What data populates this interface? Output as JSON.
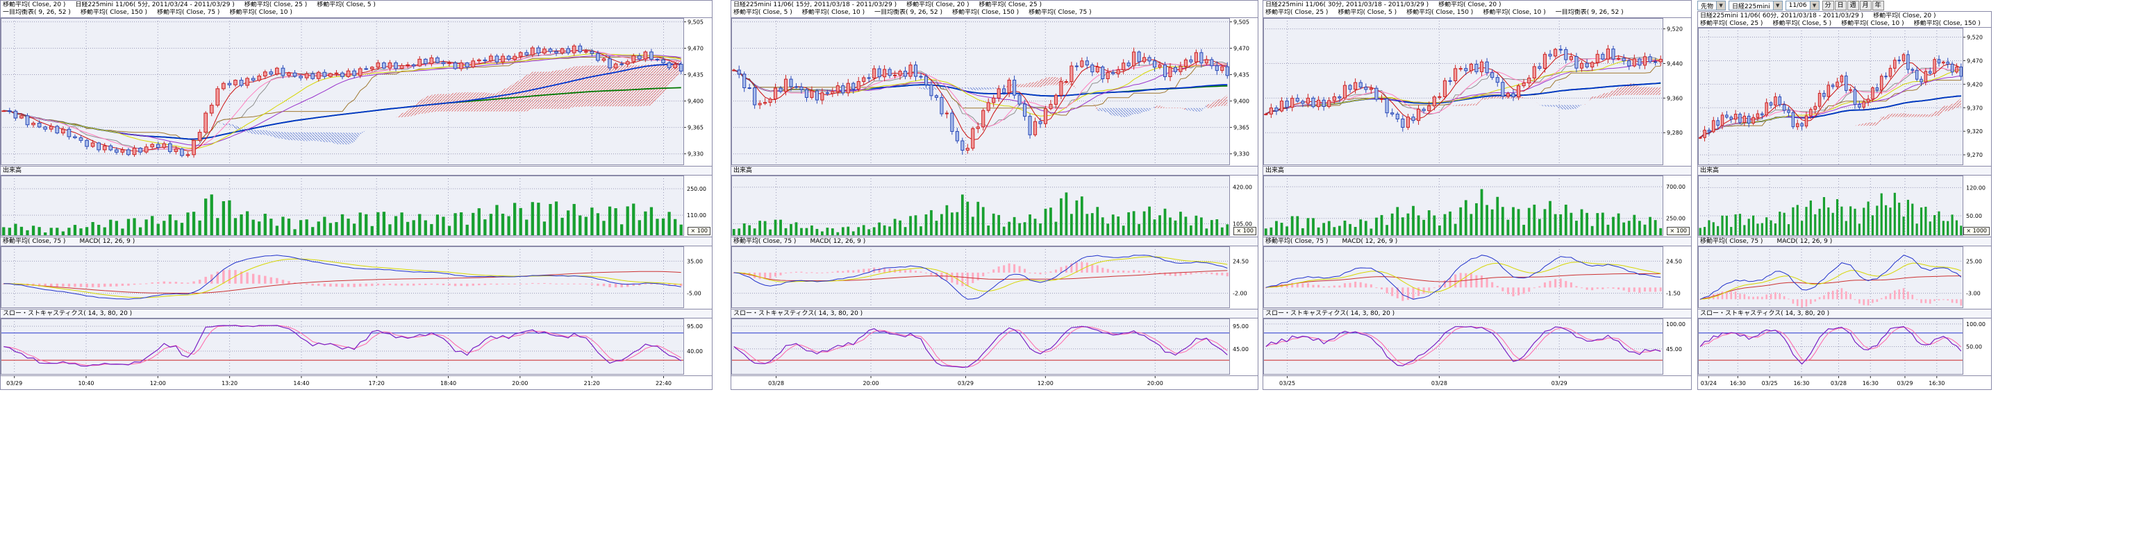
{
  "toolbar": {
    "instrument_type": "先物",
    "symbol": "日経225mini",
    "contract": "11/06",
    "dropdown_icon": "▼",
    "period_buttons": [
      "分",
      "日",
      "週",
      "月",
      "年"
    ]
  },
  "colors": {
    "plot_bg": "#eef0f7",
    "border": "#8a8aa8",
    "grid": "#9a9ab8",
    "candle_up": "#cc2222",
    "candle_up_fill": "#f29a9a",
    "candle_down": "#2a4ab8",
    "candle_down_fill": "#aabdeb",
    "ma5": "#cc1111",
    "ma10": "#ff7fbf",
    "ma20": "#d6d600",
    "ma25": "#9933cc",
    "ma75": "#0033cc",
    "ma150": "#007700",
    "tenkan": "#909090",
    "kijun": "#a07830",
    "cloud_up": "#e07878",
    "cloud_down": "#7890d8",
    "volume": "#18a030",
    "macd": "#2233cc",
    "macd_signal": "#d6d600",
    "macd_ma": "#cc3333",
    "macd_hist": "#ffaac0",
    "stoch_k": "#7a1fc4",
    "stoch_d": "#ff66aa",
    "band_high": "#2233cc",
    "band_low": "#cc2222"
  },
  "panels": [
    {
      "legend_row1": [
        "移動平均( Close, 20 )",
        "日経225mini 11/06( 5分, 2011/03/24 - 2011/03/29 )",
        "移動平均( Close, 25 )",
        "移動平均( Close, 5 )"
      ],
      "legend_row2": [
        "一目均衡表( 9, 26, 52 )",
        "移動平均( Close, 150 )",
        "移動平均( Close, 75 )",
        "移動平均( Close, 10 )"
      ],
      "volume_label": "出来高",
      "volume_unit": "× 100",
      "macd_legend": [
        "移動平均( Close, 75 )",
        "MACD( 12, 26, 9 )"
      ],
      "stoch_label": "スロー・ストキャスティクス( 14, 3, 80, 20 )"
    },
    {
      "legend_row1": [
        "日経225mini 11/06( 15分, 2011/03/18 - 2011/03/29 )",
        "移動平均( Close, 20 )",
        "移動平均( Close, 25 )"
      ],
      "legend_row2": [
        "移動平均( Close, 5 )",
        "移動平均( Close, 10 )",
        "一目均衡表( 9, 26, 52 )",
        "移動平均( Close, 150 )",
        "移動平均( Close, 75 )"
      ],
      "volume_label": "出来高",
      "volume_unit": "× 100",
      "macd_legend": [
        "移動平均( Close, 75 )",
        "MACD( 12, 26, 9 )"
      ],
      "stoch_label": "スロー・ストキャスティクス( 14, 3, 80, 20 )"
    },
    {
      "legend_row1": [
        "日経225mini 11/06( 30分, 2011/03/18 - 2011/03/29 )",
        "移動平均( Close, 20 )"
      ],
      "legend_row2": [
        "移動平均( Close, 25 )",
        "移動平均( Close, 5 )",
        "移動平均( Close, 150 )",
        "移動平均( Close, 10 )",
        "一目均衡表( 9, 26, 52 )"
      ],
      "volume_label": "出来高",
      "volume_unit": "× 100",
      "macd_legend": [
        "移動平均( Close, 75 )",
        "MACD( 12, 26, 9 )"
      ],
      "stoch_label": "スロー・ストキャスティクス( 14, 3, 80, 20 )"
    },
    {
      "legend_row1": [
        "日経225mini 11/06( 60分, 2011/03/18 - 2011/03/29 )",
        "移動平均( Close, 20 )"
      ],
      "legend_row2": [
        "移動平均( Close, 25 )",
        "移動平均( Close, 5 )",
        "移動平均( Close, 10 )",
        "移動平均( Close, 150 )",
        "移動平均( Close, 75 )"
      ],
      "volume_label": "出来高",
      "volume_unit": "× 1000",
      "macd_legend": [
        "移動平均( Close, 75 )",
        "MACD( 12, 26, 9 )"
      ],
      "stoch_label": "スロー・ストキャスティクス( 14, 3, 80, 20 )"
    }
  ],
  "chart_data": [
    {
      "type": "candlestick",
      "title": "日経225mini 11/06( 5分, 2011/03/24 - 2011/03/29 )",
      "interval": "5分",
      "date_range": "2011/03/24 - 2011/03/29",
      "n_candles": 115,
      "wiggle": 4,
      "price_range": [
        9315,
        9510
      ],
      "price_ticks": [
        {
          "v": 9505,
          "label": "9,505"
        },
        {
          "v": 9470,
          "label": "9,470"
        },
        {
          "v": 9435,
          "label": "9,435"
        },
        {
          "v": 9400,
          "label": "9,400"
        },
        {
          "v": 9365,
          "label": "9,365"
        },
        {
          "v": 9330,
          "label": "9,330"
        }
      ],
      "close_keyframes": [
        [
          0,
          9385
        ],
        [
          0.17,
          9330
        ],
        [
          0.22,
          9342
        ],
        [
          0.27,
          9328
        ],
        [
          0.32,
          9420
        ],
        [
          0.4,
          9438
        ],
        [
          0.47,
          9432
        ],
        [
          0.55,
          9445
        ],
        [
          0.63,
          9452
        ],
        [
          0.68,
          9448
        ],
        [
          0.76,
          9462
        ],
        [
          0.84,
          9470
        ],
        [
          0.9,
          9448
        ],
        [
          0.95,
          9460
        ],
        [
          1,
          9443
        ]
      ],
      "volume_keyframes": [
        [
          0,
          70
        ],
        [
          0.08,
          45
        ],
        [
          0.17,
          95
        ],
        [
          0.27,
          120
        ],
        [
          0.31,
          250
        ],
        [
          0.36,
          130
        ],
        [
          0.45,
          90
        ],
        [
          0.55,
          140
        ],
        [
          0.63,
          110
        ],
        [
          0.72,
          160
        ],
        [
          0.8,
          200
        ],
        [
          0.87,
          150
        ],
        [
          0.93,
          180
        ],
        [
          1,
          110
        ]
      ],
      "volume_max": 320,
      "volume_ticks": [
        {
          "v": 250,
          "label": "250.00"
        },
        {
          "v": 110,
          "label": "110.00"
        }
      ],
      "macd_ticks": [
        "35.00",
        "-5.00"
      ],
      "stoch_ticks": [
        {
          "v": 95,
          "label": "95.00"
        },
        {
          "v": 40,
          "label": "40.00"
        }
      ],
      "time_ticks": [
        {
          "pos": 0.02,
          "label": "03/29"
        },
        {
          "pos": 0.125,
          "label": "10:40"
        },
        {
          "pos": 0.23,
          "label": "12:00"
        },
        {
          "pos": 0.335,
          "label": "13:20"
        },
        {
          "pos": 0.44,
          "label": "14:40"
        },
        {
          "pos": 0.55,
          "label": "17:20"
        },
        {
          "pos": 0.655,
          "label": "18:40"
        },
        {
          "pos": 0.76,
          "label": "20:00"
        },
        {
          "pos": 0.865,
          "label": "21:20"
        },
        {
          "pos": 0.97,
          "label": "22:40"
        }
      ]
    },
    {
      "type": "candlestick",
      "title": "日経225mini 11/06( 15分, 2011/03/18 - 2011/03/29 )",
      "interval": "15分",
      "date_range": "2011/03/18 - 2011/03/29",
      "n_candles": 96,
      "wiggle": 6,
      "price_range": [
        9315,
        9510
      ],
      "price_ticks": [
        {
          "v": 9505,
          "label": "9,505"
        },
        {
          "v": 9470,
          "label": "9,470"
        },
        {
          "v": 9435,
          "label": "9,435"
        },
        {
          "v": 9400,
          "label": "9,400"
        },
        {
          "v": 9365,
          "label": "9,365"
        },
        {
          "v": 9330,
          "label": "9,330"
        }
      ],
      "close_keyframes": [
        [
          0,
          9438
        ],
        [
          0.05,
          9396
        ],
        [
          0.11,
          9422
        ],
        [
          0.18,
          9405
        ],
        [
          0.27,
          9432
        ],
        [
          0.36,
          9442
        ],
        [
          0.43,
          9385
        ],
        [
          0.465,
          9326
        ],
        [
          0.52,
          9408
        ],
        [
          0.56,
          9420
        ],
        [
          0.6,
          9362
        ],
        [
          0.645,
          9398
        ],
        [
          0.7,
          9458
        ],
        [
          0.755,
          9428
        ],
        [
          0.81,
          9462
        ],
        [
          0.87,
          9438
        ],
        [
          0.93,
          9456
        ],
        [
          1,
          9442
        ]
      ],
      "volume_keyframes": [
        [
          0,
          90
        ],
        [
          0.08,
          160
        ],
        [
          0.18,
          70
        ],
        [
          0.28,
          100
        ],
        [
          0.43,
          260
        ],
        [
          0.47,
          380
        ],
        [
          0.55,
          150
        ],
        [
          0.62,
          200
        ],
        [
          0.68,
          420
        ],
        [
          0.76,
          180
        ],
        [
          0.84,
          260
        ],
        [
          0.92,
          200
        ],
        [
          1,
          130
        ]
      ],
      "volume_max": 520,
      "volume_ticks": [
        {
          "v": 420,
          "label": "420.00"
        },
        {
          "v": 105,
          "label": "105.00"
        }
      ],
      "macd_ticks": [
        "24.50",
        "-2.00"
      ],
      "stoch_ticks": [
        {
          "v": 95,
          "label": "95.00"
        },
        {
          "v": 45,
          "label": "45.00"
        }
      ],
      "time_ticks": [
        {
          "pos": 0.09,
          "label": "03/28"
        },
        {
          "pos": 0.28,
          "label": "20:00"
        },
        {
          "pos": 0.47,
          "label": "03/29"
        },
        {
          "pos": 0.63,
          "label": "12:00"
        },
        {
          "pos": 0.85,
          "label": "20:00"
        }
      ]
    },
    {
      "type": "candlestick",
      "title": "日経225mini 11/06( 30分, 2011/03/18 - 2011/03/29 )",
      "interval": "30分",
      "date_range": "2011/03/18 - 2011/03/29",
      "n_candles": 76,
      "wiggle": 10,
      "price_range": [
        9205,
        9545
      ],
      "price_ticks": [
        {
          "v": 9520,
          "label": "9,520"
        },
        {
          "v": 9440,
          "label": "9,440"
        },
        {
          "v": 9360,
          "label": "9,360"
        },
        {
          "v": 9280,
          "label": "9,280"
        }
      ],
      "close_keyframes": [
        [
          0,
          9318
        ],
        [
          0.07,
          9362
        ],
        [
          0.14,
          9338
        ],
        [
          0.21,
          9392
        ],
        [
          0.28,
          9368
        ],
        [
          0.35,
          9292
        ],
        [
          0.41,
          9345
        ],
        [
          0.48,
          9418
        ],
        [
          0.55,
          9442
        ],
        [
          0.61,
          9352
        ],
        [
          0.67,
          9420
        ],
        [
          0.74,
          9472
        ],
        [
          0.81,
          9430
        ],
        [
          0.87,
          9466
        ],
        [
          0.93,
          9438
        ],
        [
          1,
          9448
        ]
      ],
      "volume_keyframes": [
        [
          0,
          160
        ],
        [
          0.08,
          320
        ],
        [
          0.17,
          200
        ],
        [
          0.27,
          260
        ],
        [
          0.35,
          460
        ],
        [
          0.45,
          320
        ],
        [
          0.55,
          680
        ],
        [
          0.63,
          420
        ],
        [
          0.72,
          500
        ],
        [
          0.81,
          380
        ],
        [
          0.9,
          320
        ],
        [
          1,
          260
        ]
      ],
      "volume_max": 860,
      "volume_ticks": [
        {
          "v": 700,
          "label": "700.00"
        },
        {
          "v": 250,
          "label": "250.00"
        }
      ],
      "macd_ticks": [
        "24.50",
        "-1.50"
      ],
      "stoch_ticks": [
        {
          "v": 100,
          "label": "100.00"
        },
        {
          "v": 45,
          "label": "45.00"
        }
      ],
      "time_ticks": [
        {
          "pos": 0.06,
          "label": "03/25"
        },
        {
          "pos": 0.44,
          "label": "03/28"
        },
        {
          "pos": 0.74,
          "label": "03/29"
        }
      ]
    },
    {
      "type": "candlestick",
      "title": "日経225mini 11/06( 60分, 2011/03/18 - 2011/03/29 )",
      "interval": "60分",
      "date_range": "2011/03/18 - 2011/03/29",
      "n_candles": 60,
      "wiggle": 9,
      "price_range": [
        9248,
        9540
      ],
      "price_ticks": [
        {
          "v": 9520,
          "label": "9,520"
        },
        {
          "v": 9470,
          "label": "9,470"
        },
        {
          "v": 9420,
          "label": "9,420"
        },
        {
          "v": 9370,
          "label": "9,370"
        },
        {
          "v": 9320,
          "label": "9,320"
        },
        {
          "v": 9270,
          "label": "9,270"
        }
      ],
      "close_keyframes": [
        [
          0,
          9302
        ],
        [
          0.09,
          9358
        ],
        [
          0.18,
          9336
        ],
        [
          0.28,
          9390
        ],
        [
          0.37,
          9330
        ],
        [
          0.45,
          9382
        ],
        [
          0.54,
          9440
        ],
        [
          0.61,
          9362
        ],
        [
          0.69,
          9432
        ],
        [
          0.77,
          9476
        ],
        [
          0.84,
          9430
        ],
        [
          0.91,
          9466
        ],
        [
          1,
          9450
        ]
      ],
      "volume_keyframes": [
        [
          0,
          30
        ],
        [
          0.12,
          62
        ],
        [
          0.25,
          45
        ],
        [
          0.37,
          82
        ],
        [
          0.5,
          100
        ],
        [
          0.6,
          72
        ],
        [
          0.72,
          115
        ],
        [
          0.82,
          88
        ],
        [
          0.92,
          60
        ],
        [
          1,
          48
        ]
      ],
      "volume_max": 150,
      "volume_ticks": [
        {
          "v": 120,
          "label": "120.00"
        },
        {
          "v": 50,
          "label": "50.00"
        }
      ],
      "macd_ticks": [
        "25.00",
        "-3.00"
      ],
      "stoch_ticks": [
        {
          "v": 100,
          "label": "100.00"
        },
        {
          "v": 50,
          "label": "50.00"
        }
      ],
      "time_ticks": [
        {
          "pos": 0.04,
          "label": "03/24"
        },
        {
          "pos": 0.15,
          "label": "16:30"
        },
        {
          "pos": 0.27,
          "label": "03/25"
        },
        {
          "pos": 0.39,
          "label": "16:30"
        },
        {
          "pos": 0.53,
          "label": "03/28"
        },
        {
          "pos": 0.65,
          "label": "16:30"
        },
        {
          "pos": 0.78,
          "label": "03/29"
        },
        {
          "pos": 0.9,
          "label": "16:30"
        }
      ]
    }
  ]
}
